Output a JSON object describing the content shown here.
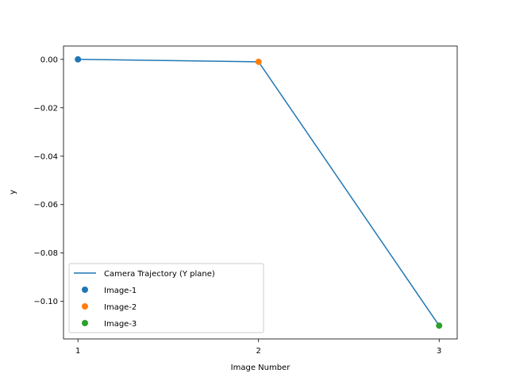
{
  "chart_data": {
    "type": "line",
    "title": "",
    "xlabel": "Image Number",
    "ylabel": "y",
    "xlim": [
      0.92,
      3.1
    ],
    "ylim": [
      -0.1155,
      0.0055
    ],
    "xticks": [
      1,
      2,
      3
    ],
    "xtick_labels": [
      "1",
      "2",
      "3"
    ],
    "yticks": [
      0.0,
      -0.02,
      -0.04,
      -0.06,
      -0.08,
      -0.1
    ],
    "ytick_labels": [
      "0.00",
      "−0.02",
      "−0.04",
      "−0.06",
      "−0.08",
      "−0.10"
    ],
    "grid": false,
    "legend_position": "lower-left",
    "line_series": {
      "name": "Camera Trajectory (Y plane)",
      "color": "#1f77b4",
      "x": [
        1,
        2,
        3
      ],
      "y": [
        0.0,
        -0.001,
        -0.11
      ]
    },
    "scatter_series": [
      {
        "name": "Image-1",
        "color": "#1f77b4",
        "x": 1,
        "y": 0.0
      },
      {
        "name": "Image-2",
        "color": "#ff7f0e",
        "x": 2,
        "y": -0.001
      },
      {
        "name": "Image-3",
        "color": "#2ca02c",
        "x": 3,
        "y": -0.11
      }
    ]
  }
}
